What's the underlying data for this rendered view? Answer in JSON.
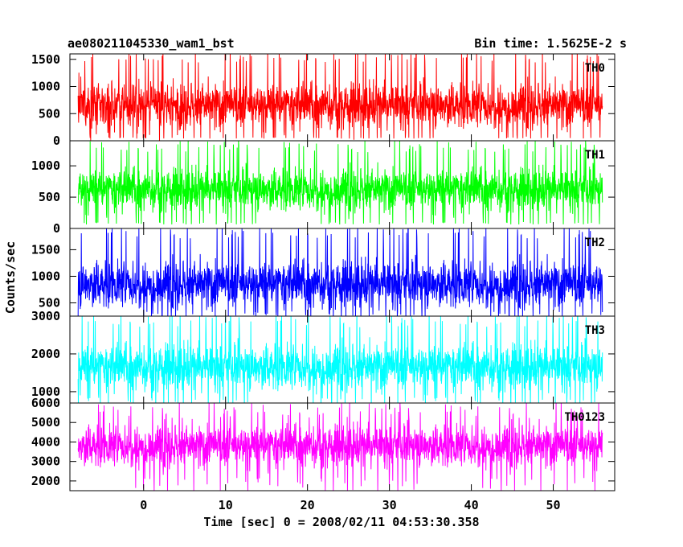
{
  "chart_data": {
    "type": "line",
    "title": "ae080211045330_wam1_bst",
    "bin_time_label": "Bin time: 1.5625E-2 s",
    "xlabel": "Time [sec] 0 = 2008/02/11 04:53:30.358",
    "ylabel": "Counts/sec",
    "xlim": [
      -9,
      57.5
    ],
    "data_x_range": [
      -8,
      56
    ],
    "x_ticks": [
      0,
      10,
      20,
      30,
      40,
      50
    ],
    "x_tick_labels": [
      "0",
      "10",
      "20",
      "30",
      "40",
      "50"
    ],
    "grid": false,
    "legend": "none",
    "panels": [
      {
        "name": "TH0",
        "color": "#ff0000",
        "ylim": [
          0,
          1600
        ],
        "y_ticks": [
          0,
          500,
          1000,
          1500
        ],
        "y_tick_labels": [
          "0",
          "500",
          "1000",
          "1500"
        ],
        "mean": 650,
        "min_approx": 50,
        "max_approx": 1600
      },
      {
        "name": "TH1",
        "color": "#00ff00",
        "ylim": [
          0,
          1400
        ],
        "y_ticks": [
          0,
          500,
          1000
        ],
        "y_tick_labels": [
          "0",
          "500",
          "1000"
        ],
        "mean": 620,
        "min_approx": 80,
        "max_approx": 1350
      },
      {
        "name": "TH2",
        "color": "#0000ff",
        "ylim": [
          250,
          1900
        ],
        "y_ticks": [
          500,
          1000,
          1500
        ],
        "y_tick_labels": [
          "500",
          "1000",
          "1500"
        ],
        "mean": 850,
        "min_approx": 250,
        "max_approx": 1900
      },
      {
        "name": "TH3",
        "color": "#00ffff",
        "ylim": [
          700,
          3000
        ],
        "y_ticks": [
          1000,
          2000,
          3000
        ],
        "y_tick_labels": [
          "1000",
          "2000",
          "3000"
        ],
        "mean": 1650,
        "min_approx": 700,
        "max_approx": 3000
      },
      {
        "name": "TH0123",
        "color": "#ff00ff",
        "ylim": [
          1500,
          6000
        ],
        "y_ticks": [
          2000,
          3000,
          4000,
          5000,
          6000
        ],
        "y_tick_labels": [
          "2000",
          "3000",
          "4000",
          "5000",
          "6000"
        ],
        "mean": 3800,
        "min_approx": 1800,
        "max_approx": 5800
      }
    ]
  }
}
